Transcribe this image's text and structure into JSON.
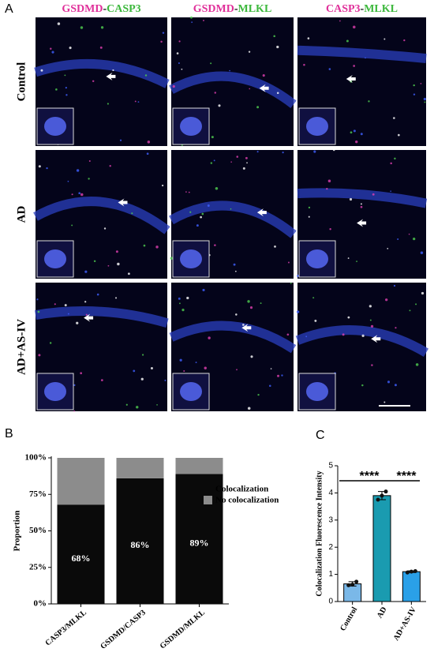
{
  "panel_a": {
    "label": "A",
    "columns": [
      {
        "parts": [
          "GSDMD",
          "-",
          "CASP3"
        ],
        "colors": [
          "#e0309a",
          "#000000",
          "#3cb83c"
        ]
      },
      {
        "parts": [
          "GSDMD",
          "-",
          "MLKL"
        ],
        "colors": [
          "#e0309a",
          "#000000",
          "#3cb83c"
        ]
      },
      {
        "parts": [
          "CASP3",
          "-",
          "MLKL"
        ],
        "colors": [
          "#e0309a",
          "#000000",
          "#3cb83c"
        ]
      }
    ],
    "rows": [
      "Control",
      "AD",
      "AD+AS-IV"
    ]
  },
  "chart_data": [
    {
      "type": "stacked_bar",
      "label": "B",
      "ylabel": "Proportion",
      "categories": [
        "CASP3/MLKL",
        "GSDMD/CASP3",
        "GSDMD/MLKL"
      ],
      "series": [
        {
          "name": "Colocalization",
          "color": "#0a0a0a",
          "values": [
            68,
            86,
            89
          ],
          "value_labels": [
            "68%",
            "86%",
            "89%"
          ]
        },
        {
          "name": "No colocalization",
          "color": "#8c8c8c",
          "values": [
            32,
            14,
            11
          ]
        }
      ],
      "ylim": [
        0,
        100
      ],
      "yticks": [
        {
          "value": 0,
          "label": "0%"
        },
        {
          "value": 25,
          "label": "25%"
        },
        {
          "value": 50,
          "label": "50%"
        },
        {
          "value": 75,
          "label": "75%"
        },
        {
          "value": 100,
          "label": "100%"
        }
      ]
    },
    {
      "type": "bar",
      "label": "C",
      "ylabel": "Colocalization Fluorescence Intensity",
      "categories": [
        "Control",
        "AD",
        "AD+AS-IV"
      ],
      "values": [
        0.65,
        3.9,
        1.1
      ],
      "errors": [
        0.08,
        0.15,
        0.03
      ],
      "points": [
        [
          0.6,
          0.62,
          0.73
        ],
        [
          3.75,
          3.9,
          4.05
        ],
        [
          1.07,
          1.1,
          1.12
        ]
      ],
      "colors": [
        "#7ab8e8",
        "#1a9bb0",
        "#2aa0e8"
      ],
      "ylim": [
        0,
        5
      ],
      "yticks": [
        0,
        1,
        2,
        3,
        4,
        5
      ],
      "annotations": [
        "****",
        "****"
      ]
    }
  ]
}
